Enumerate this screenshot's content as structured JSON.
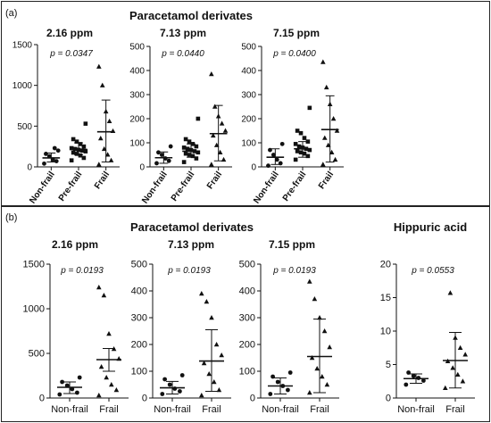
{
  "panels": [
    {
      "label": "(a)",
      "header": "Paracetamol derivates",
      "header2": ""
    },
    {
      "label": "(b)",
      "header": "Paracetamol derivates",
      "header2": "Hippuric acid"
    }
  ],
  "chart_data": [
    {
      "type": "scatter",
      "panel": "a",
      "title": "2.16 ppm",
      "pvalue": "p = 0.0347",
      "categories": [
        "Non-frail",
        "Pre-frail",
        "Frail"
      ],
      "markers": [
        "circle",
        "square",
        "triangle"
      ],
      "ylim": [
        0,
        1500
      ],
      "yticks": [
        0,
        500,
        1000,
        1500
      ],
      "summary": [
        {
          "mean": 110,
          "sd_low": 60,
          "sd_high": 170
        },
        {
          "mean": 215,
          "sd_low": 150,
          "sd_high": 295
        },
        {
          "mean": 430,
          "sd_low": 60,
          "sd_high": 820
        }
      ],
      "points": [
        [
          40,
          70,
          90,
          130,
          160,
          200,
          230
        ],
        [
          80,
          110,
          140,
          160,
          175,
          190,
          200,
          210,
          220,
          230,
          250,
          280,
          310,
          340,
          530
        ],
        [
          30,
          80,
          150,
          220,
          350,
          440,
          560,
          680,
          1000,
          1230
        ]
      ]
    },
    {
      "type": "scatter",
      "panel": "a",
      "title": "7.13 ppm",
      "pvalue": "p = 0.0440",
      "categories": [
        "Non-frail",
        "Pre-frail",
        "Frail"
      ],
      "markers": [
        "circle",
        "square",
        "triangle"
      ],
      "ylim": [
        0,
        500
      ],
      "yticks": [
        0,
        100,
        200,
        300,
        400,
        500
      ],
      "summary": [
        {
          "mean": 38,
          "sd_low": 15,
          "sd_high": 62
        },
        {
          "mean": 65,
          "sd_low": 40,
          "sd_high": 95
        },
        {
          "mean": 138,
          "sd_low": 25,
          "sd_high": 255
        }
      ],
      "points": [
        [
          15,
          25,
          35,
          50,
          60,
          85
        ],
        [
          20,
          35,
          45,
          50,
          55,
          60,
          65,
          70,
          75,
          80,
          85,
          95,
          105,
          115,
          200
        ],
        [
          10,
          30,
          60,
          90,
          130,
          150,
          180,
          210,
          250,
          385
        ]
      ]
    },
    {
      "type": "scatter",
      "panel": "a",
      "title": "7.15 ppm",
      "pvalue": "p = 0.0400",
      "categories": [
        "Non-frail",
        "Pre-frail",
        "Frail"
      ],
      "markers": [
        "circle",
        "square",
        "triangle"
      ],
      "ylim": [
        0,
        500
      ],
      "yticks": [
        0,
        100,
        200,
        300,
        400,
        500
      ],
      "summary": [
        {
          "mean": 40,
          "sd_low": 10,
          "sd_high": 75
        },
        {
          "mean": 75,
          "sd_low": 40,
          "sd_high": 105
        },
        {
          "mean": 155,
          "sd_low": 20,
          "sd_high": 295
        }
      ],
      "points": [
        [
          5,
          15,
          30,
          50,
          70,
          95
        ],
        [
          30,
          45,
          55,
          60,
          65,
          70,
          75,
          80,
          85,
          95,
          105,
          120,
          140,
          150,
          245
        ],
        [
          10,
          30,
          60,
          90,
          120,
          150,
          200,
          260,
          330,
          435
        ]
      ]
    },
    {
      "type": "scatter",
      "panel": "b",
      "title": "2.16 ppm",
      "pvalue": "p = 0.0193",
      "categories": [
        "Non-frail",
        "Frail"
      ],
      "markers": [
        "circle",
        "triangle"
      ],
      "ylim": [
        0,
        1500
      ],
      "yticks": [
        0,
        500,
        1000,
        1500
      ],
      "summary": [
        {
          "mean": 120,
          "sd_low": 50,
          "sd_high": 180
        },
        {
          "mean": 430,
          "sd_low": 300,
          "sd_high": 555
        }
      ],
      "points": [
        [
          40,
          60,
          100,
          140,
          180,
          230
        ],
        [
          30,
          90,
          150,
          230,
          350,
          440,
          550,
          720,
          1150,
          1240
        ]
      ]
    },
    {
      "type": "scatter",
      "panel": "b",
      "title": "7.13 ppm",
      "pvalue": "p = 0.0193",
      "categories": [
        "Non-frail",
        "Frail"
      ],
      "markers": [
        "circle",
        "triangle"
      ],
      "ylim": [
        0,
        500
      ],
      "yticks": [
        0,
        100,
        200,
        300,
        400,
        500
      ],
      "summary": [
        {
          "mean": 38,
          "sd_low": 15,
          "sd_high": 62
        },
        {
          "mean": 138,
          "sd_low": 25,
          "sd_high": 255
        }
      ],
      "points": [
        [
          15,
          25,
          35,
          50,
          70,
          85
        ],
        [
          10,
          30,
          60,
          90,
          130,
          160,
          200,
          300,
          360,
          390
        ]
      ]
    },
    {
      "type": "scatter",
      "panel": "b",
      "title": "7.15 ppm",
      "pvalue": "p = 0.0193",
      "categories": [
        "Non-frail",
        "Frail"
      ],
      "markers": [
        "circle",
        "triangle"
      ],
      "ylim": [
        0,
        500
      ],
      "yticks": [
        0,
        100,
        200,
        300,
        400,
        500
      ],
      "summary": [
        {
          "mean": 45,
          "sd_low": 15,
          "sd_high": 75
        },
        {
          "mean": 155,
          "sd_low": 20,
          "sd_high": 295
        }
      ],
      "points": [
        [
          15,
          30,
          45,
          60,
          80,
          95
        ],
        [
          20,
          50,
          80,
          110,
          150,
          190,
          250,
          300,
          370,
          435
        ]
      ]
    },
    {
      "type": "scatter",
      "panel": "b",
      "title": "",
      "pvalue": "p = 0.0553",
      "categories": [
        "Non-frail",
        "Frail"
      ],
      "markers": [
        "circle",
        "triangle"
      ],
      "ylim": [
        0,
        20
      ],
      "yticks": [
        0,
        5,
        10,
        15,
        20
      ],
      "summary": [
        {
          "mean": 2.9,
          "sd_low": 2.2,
          "sd_high": 3.6
        },
        {
          "mean": 5.6,
          "sd_low": 1.5,
          "sd_high": 9.8
        }
      ],
      "points": [
        [
          2.0,
          2.6,
          3.0,
          3.3,
          3.8
        ],
        [
          1.5,
          2.5,
          3.5,
          4.5,
          5.5,
          6.5,
          7.5,
          9.0,
          15.7
        ]
      ]
    }
  ]
}
